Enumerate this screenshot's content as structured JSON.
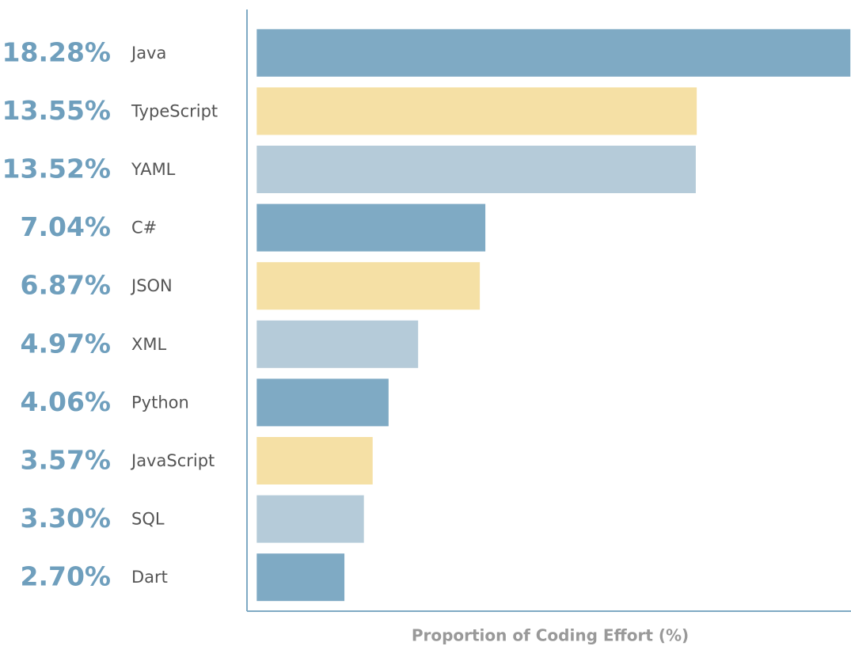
{
  "chart_data": {
    "type": "bar",
    "orientation": "horizontal",
    "x_label": "Proportion of Coding Effort (%)",
    "categories": [
      "Java",
      "TypeScript",
      "YAML",
      "C#",
      "JSON",
      "XML",
      "Python",
      "JavaScript",
      "SQL",
      "Dart"
    ],
    "values": [
      18.28,
      13.55,
      13.52,
      7.04,
      6.87,
      4.97,
      4.06,
      3.57,
      3.3,
      2.7
    ],
    "value_labels": [
      "18.28%",
      "13.55%",
      "13.52%",
      "7.04%",
      "6.87%",
      "4.97%",
      "4.06%",
      "3.57%",
      "3.30%",
      "2.70%"
    ],
    "colors": [
      "#7faac4",
      "#f5e0a5",
      "#b5cbd9",
      "#7faac4",
      "#f5e0a5",
      "#b5cbd9",
      "#7faac4",
      "#f5e0a5",
      "#b5cbd9",
      "#7faac4"
    ],
    "xlim": [
      -0.3,
      18.3
    ]
  }
}
